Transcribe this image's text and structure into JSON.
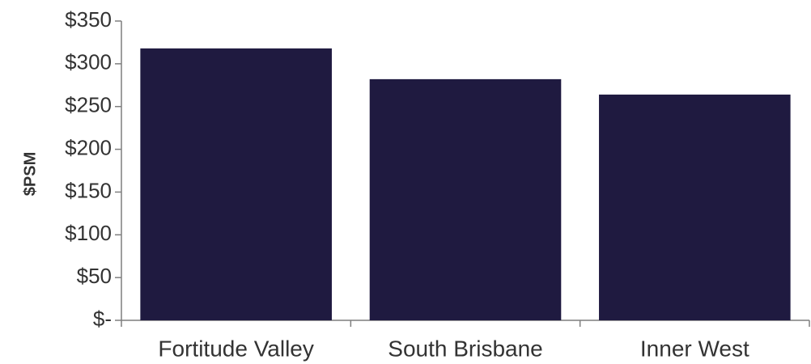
{
  "chart_data": {
    "type": "bar",
    "categories": [
      "Fortitude Valley",
      "South Brisbane",
      "Inner West"
    ],
    "values": [
      318,
      282,
      264
    ],
    "title": "",
    "xlabel": "",
    "ylabel": "$PSM",
    "ylim": [
      0,
      350
    ],
    "yticks": [
      0,
      50,
      100,
      150,
      200,
      250,
      300,
      350
    ],
    "ytick_labels": [
      "$-",
      "$50",
      "$100",
      "$150",
      "$200",
      "$250",
      "$300",
      "$350"
    ],
    "grid": false,
    "legend": "none",
    "bar_color": "#1f1a40",
    "axis_color": "#7f7f7f"
  }
}
